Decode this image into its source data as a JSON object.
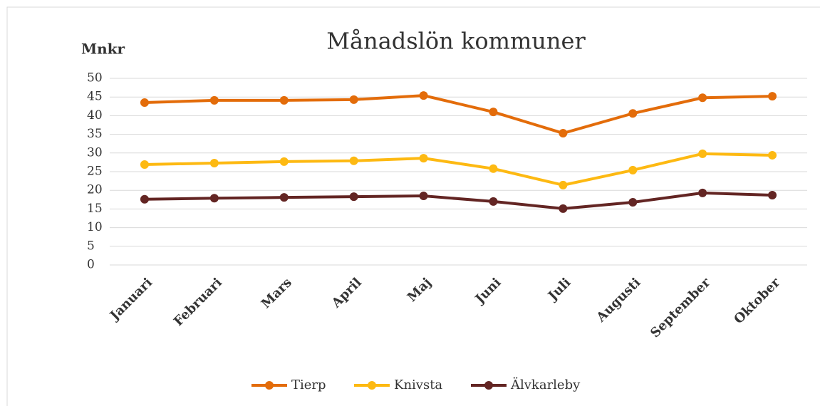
{
  "chart_data": {
    "type": "line",
    "title": "Månadslön kommuner",
    "y_label": "Mnkr",
    "categories": [
      "Januari",
      "Februari",
      "Mars",
      "April",
      "Maj",
      "Juni",
      "Juli",
      "Augusti",
      "September",
      "Oktober"
    ],
    "series": [
      {
        "name": "Tierp",
        "color": "#e36c0a",
        "values": [
          43.5,
          44.1,
          44.1,
          44.3,
          45.4,
          41.0,
          35.3,
          40.6,
          44.8,
          45.2
        ]
      },
      {
        "name": "Knivsta",
        "color": "#fdb912",
        "values": [
          26.9,
          27.3,
          27.7,
          27.9,
          28.6,
          25.8,
          21.4,
          25.4,
          29.8,
          29.4
        ]
      },
      {
        "name": "Älvkarleby",
        "color": "#632523",
        "values": [
          17.6,
          17.9,
          18.1,
          18.3,
          18.5,
          17.0,
          15.1,
          16.8,
          19.3,
          18.7
        ]
      }
    ],
    "ylim": [
      0,
      50
    ],
    "yticks": [
      0,
      5,
      10,
      15,
      20,
      25,
      30,
      35,
      40,
      45,
      50
    ],
    "grid": true
  }
}
